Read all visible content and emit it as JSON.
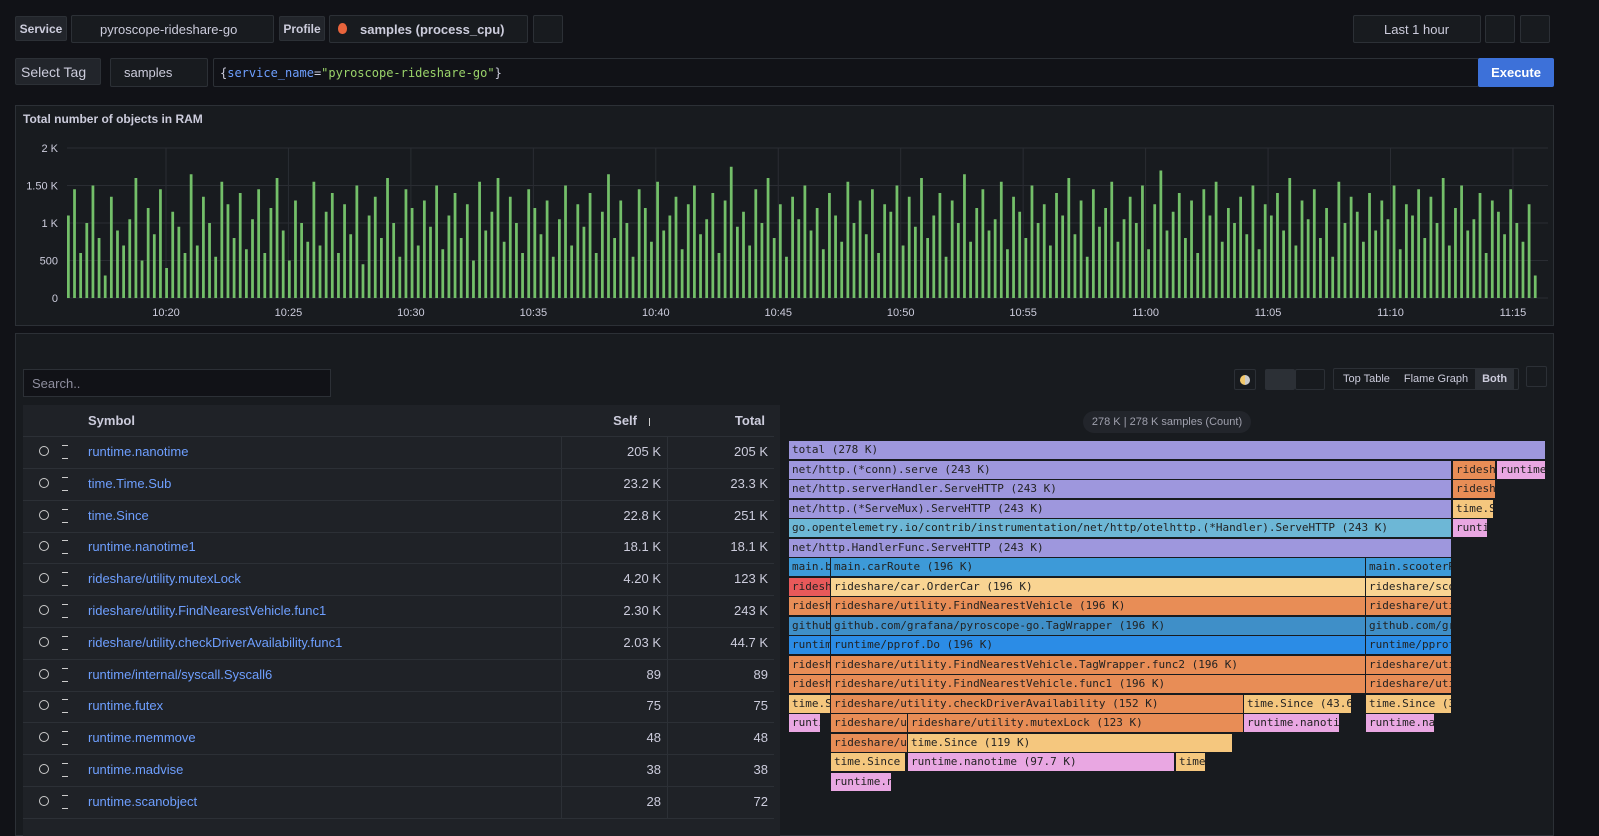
{
  "toolbar": {
    "service_label": "Service",
    "service": "pyroscope-rideshare-go",
    "profile_label": "Profile",
    "profile": "samples (process_cpu)",
    "time_range": "Last 1 hour"
  },
  "query": {
    "select_tag": "Select Tag",
    "metric": "samples",
    "open": "{",
    "key": "service_name",
    "eq": "=",
    "value": "\"pyroscope-rideshare-go\"",
    "close": "}",
    "execute": "Execute"
  },
  "chart_data": {
    "type": "bar",
    "title": "Total number of objects in RAM",
    "color": "#73bf69",
    "grid": true,
    "ylim": [
      0,
      2000
    ],
    "yticks": [
      0,
      500,
      {
        "value": 1000,
        "label": "1 K"
      },
      {
        "value": 1500,
        "label": "1.50 K"
      },
      {
        "value": 2000,
        "label": "2 K"
      }
    ],
    "xticks": [
      "10:20",
      "10:25",
      "10:30",
      "10:35",
      "10:40",
      "10:45",
      "10:50",
      "10:55",
      "11:00",
      "11:05",
      "11:10",
      "11:15"
    ],
    "values": [
      1100,
      1450,
      600,
      1000,
      1500,
      800,
      300,
      1350,
      900,
      700,
      1050,
      1600,
      500,
      1200,
      850,
      1450,
      400,
      1150,
      950,
      600,
      1650,
      700,
      1350,
      1000,
      550,
      1550,
      1250,
      800,
      1400,
      650,
      1050,
      1450,
      600,
      1200,
      1600,
      900,
      500,
      1300,
      1000,
      750,
      1550,
      700,
      1150,
      1400,
      600,
      1250,
      850,
      1500,
      450,
      1100,
      1350,
      800,
      1600,
      1000,
      550,
      1450,
      1200,
      700,
      1300,
      950,
      1500,
      650,
      1100,
      1400,
      800,
      1250,
      500,
      1550,
      900,
      1150,
      1600,
      750,
      1350,
      1000,
      600,
      1450,
      1200,
      850,
      1300,
      550,
      1050,
      1500,
      700,
      1250,
      950,
      1400,
      600,
      1150,
      1650,
      800,
      1300,
      1000,
      550,
      1450,
      1200,
      750,
      1550,
      900,
      1100,
      1350,
      650,
      1250,
      1500,
      850,
      1050,
      1400,
      600,
      1300,
      1750,
      950,
      1150,
      700,
      1450,
      1000,
      1600,
      800,
      1250,
      550,
      1350,
      1050,
      1500,
      900,
      1200,
      650,
      1400,
      1100,
      750,
      1550,
      1000,
      1300,
      850,
      1450,
      600,
      1250,
      1150,
      1500,
      700,
      1350,
      950,
      1600,
      800,
      1100,
      1400,
      550,
      1300,
      1000,
      1650,
      750,
      1200,
      1450,
      900,
      1050,
      1550,
      650,
      1350,
      1150,
      800,
      1500,
      1000,
      1250,
      700,
      1400,
      1100,
      1600,
      850,
      1300,
      550,
      1450,
      950,
      1200,
      1550,
      750,
      1050,
      1350,
      1000,
      1500,
      650,
      1250,
      1700,
      900,
      1150,
      1400,
      800,
      1300,
      600,
      1450,
      1100,
      1550,
      750,
      1200,
      1000,
      1350,
      850,
      1500,
      650,
      1250,
      1100,
      1400,
      900,
      1600,
      700,
      1300,
      1050,
      1450,
      800,
      1200,
      550,
      1550,
      1000,
      1350,
      1150,
      750,
      1400,
      900,
      1300,
      1050,
      1500,
      650,
      1250,
      1100,
      1450,
      800,
      1350,
      1000,
      1600,
      700,
      1200,
      1500,
      900,
      1050,
      1400,
      600,
      1300,
      1150,
      850,
      1450,
      1000,
      750,
      1250,
      300
    ]
  },
  "controls": {
    "search_placeholder": "Search..",
    "views": [
      "Top Table",
      "Flame Graph",
      "Both"
    ]
  },
  "table": {
    "headers": [
      "Symbol",
      "Self",
      "Total"
    ],
    "rows": [
      [
        "runtime.nanotime",
        "205 K",
        "205 K"
      ],
      [
        "time.Time.Sub",
        "23.2 K",
        "23.3 K"
      ],
      [
        "time.Since",
        "22.8 K",
        "251 K"
      ],
      [
        "runtime.nanotime1",
        "18.1 K",
        "18.1 K"
      ],
      [
        "rideshare/utility.mutexLock",
        "4.20 K",
        "123 K"
      ],
      [
        "rideshare/utility.FindNearestVehicle.func1",
        "2.30 K",
        "243 K"
      ],
      [
        "rideshare/utility.checkDriverAvailability.func1",
        "2.03 K",
        "44.7 K"
      ],
      [
        "runtime/internal/syscall.Syscall6",
        "89",
        "89"
      ],
      [
        "runtime.futex",
        "75",
        "75"
      ],
      [
        "runtime.memmove",
        "48",
        "48"
      ],
      [
        "runtime.madvise",
        "38",
        "38"
      ],
      [
        "runtime.scanobject",
        "28",
        "72"
      ]
    ]
  },
  "flamegraph": {
    "summary": "278 K | 278 K samples (Count)",
    "frames": [
      "total (278 K)",
      "net/http.(*conn).serve (243 K)",
      "ridesh",
      "runtime",
      "net/http.serverHandler.ServeHTTP (243 K)",
      "ridesh",
      "net/http.(*ServeMux).ServeHTTP (243 K)",
      "time.S",
      "go.opentelemetry.io/contrib/instrumentation/net/http/otelhttp.(*Handler).ServeHTTP (243 K)",
      "runti",
      "net/http.HandlerFunc.ServeHTTP (243 K)",
      "main.b",
      "main.carRoute (196 K)",
      "main.scooterR",
      "ridesh",
      "rideshare/car.OrderCar (196 K)",
      "rideshare/sco",
      "ridesh",
      "rideshare/utility.FindNearestVehicle (196 K)",
      "rideshare/uti",
      "github",
      "github.com/grafana/pyroscope-go.TagWrapper (196 K)",
      "github.com/gr",
      "runtim",
      "runtime/pprof.Do (196 K)",
      "runtime/pprof",
      "ridesh",
      "rideshare/utility.FindNearestVehicle.TagWrapper.func2 (196 K)",
      "rideshare/uti",
      "ridesh",
      "rideshare/utility.FindNearestVehicle.func1 (196 K)",
      "rideshare/uti",
      "time.S",
      "rideshare/utility.checkDriverAvailability (152 K)",
      "time.Since (43.6 K",
      "time.Since (3",
      "runti",
      "rideshare/ut",
      "rideshare/utility.mutexLock (123 K)",
      "runtime.nanoti",
      "runtime.na",
      "rideshare/ut",
      "time.Since (119 K)",
      "time.Since",
      "runtime.nanotime (97.7 K)",
      "time",
      "runtime.n"
    ]
  }
}
